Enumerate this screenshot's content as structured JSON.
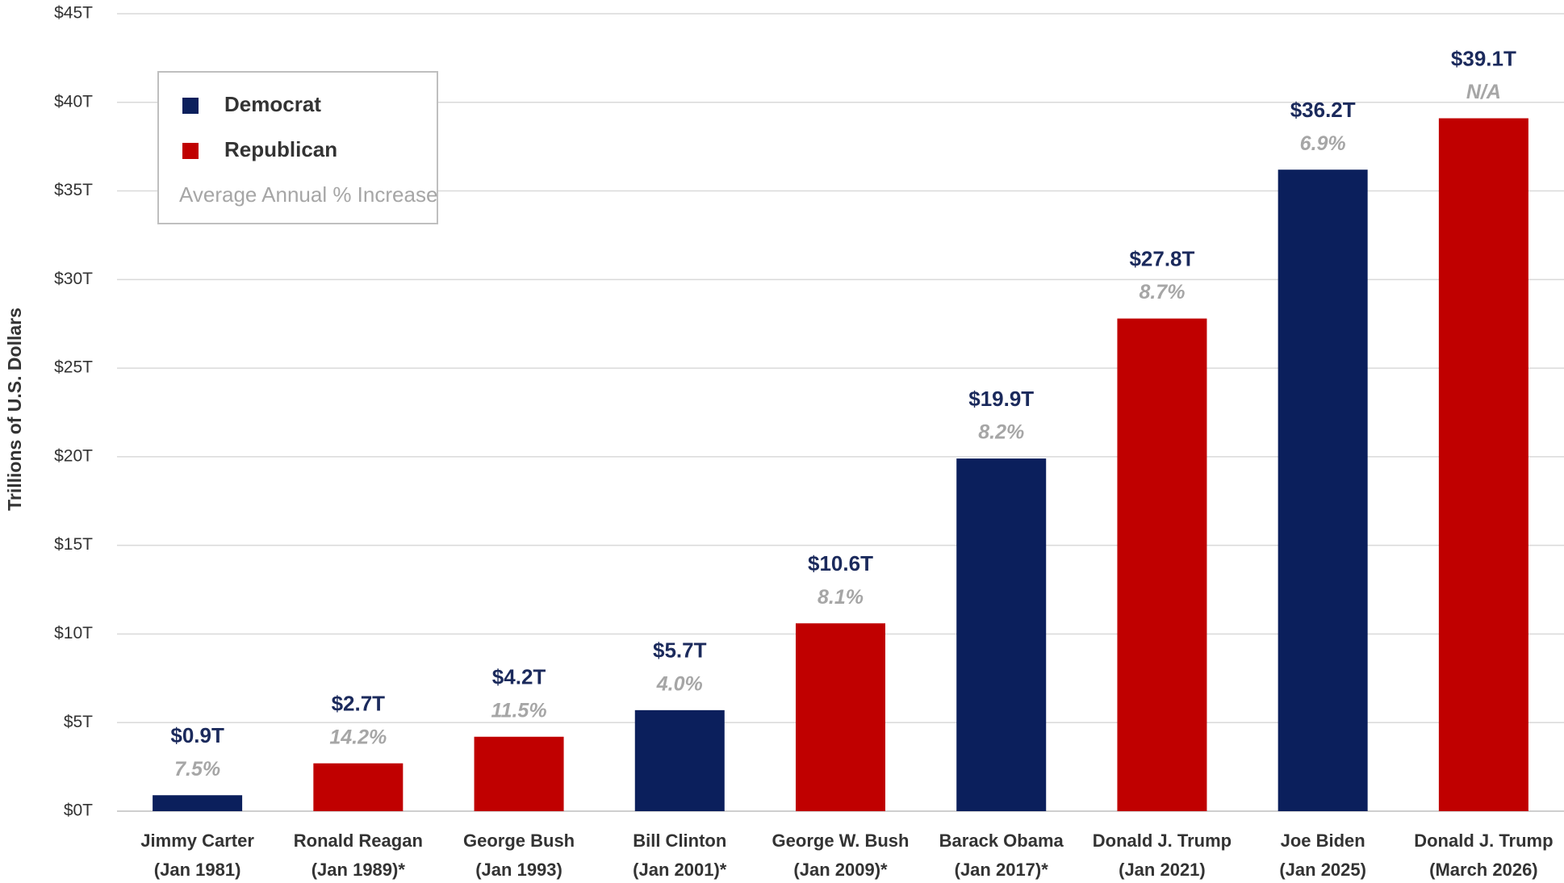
{
  "chart_data": {
    "type": "bar",
    "y_label": "Trillions of U.S. Dollars",
    "categories": [
      [
        "Jimmy Carter",
        "(Jan 1981)"
      ],
      [
        "Ronald Reagan",
        "(Jan 1989)*"
      ],
      [
        "George Bush",
        "(Jan 1993)"
      ],
      [
        "Bill Clinton",
        "(Jan 2001)*"
      ],
      [
        "George W. Bush",
        "(Jan 2009)*"
      ],
      [
        "Barack Obama",
        "(Jan 2017)*"
      ],
      [
        "Donald J. Trump",
        "(Jan 2021)"
      ],
      [
        "Joe Biden",
        "(Jan 2025)"
      ],
      [
        "Donald J. Trump",
        "(March 2026)"
      ]
    ],
    "values": [
      0.9,
      2.7,
      4.2,
      5.7,
      10.6,
      19.9,
      27.8,
      36.2,
      39.1
    ],
    "value_labels": [
      "$0.9T",
      "$2.7T",
      "$4.2T",
      "$5.7T",
      "$10.6T",
      "$19.9T",
      "$27.8T",
      "$36.2T",
      "$39.1T"
    ],
    "increase_labels": [
      "7.5%",
      "14.2%",
      "11.5%",
      "4.0%",
      "8.1%",
      "8.2%",
      "8.7%",
      "6.9%",
      "N/A"
    ],
    "colors": [
      "#0b1f5c",
      "#c00000",
      "#c00000",
      "#0b1f5c",
      "#c00000",
      "#0b1f5c",
      "#c00000",
      "#0b1f5c",
      "#c00000"
    ],
    "legend": [
      {
        "name": "Democrat",
        "color": "#0b1f5c"
      },
      {
        "name": "Republican",
        "color": "#c00000"
      }
    ],
    "increase_legend": "Average Annual % Increase",
    "ylim": [
      0,
      45
    ],
    "yticks": [
      {
        "value": 0,
        "label": "$0T"
      },
      {
        "value": 5,
        "label": "$5T"
      },
      {
        "value": 10,
        "label": "$10T"
      },
      {
        "value": 15,
        "label": "$15T"
      },
      {
        "value": 20,
        "label": "$20T"
      },
      {
        "value": 25,
        "label": "$25T"
      },
      {
        "value": 30,
        "label": "$30T"
      },
      {
        "value": 35,
        "label": "$35T"
      },
      {
        "value": 40,
        "label": "$40T"
      },
      {
        "value": 45,
        "label": "$45T"
      }
    ],
    "grid": true
  }
}
